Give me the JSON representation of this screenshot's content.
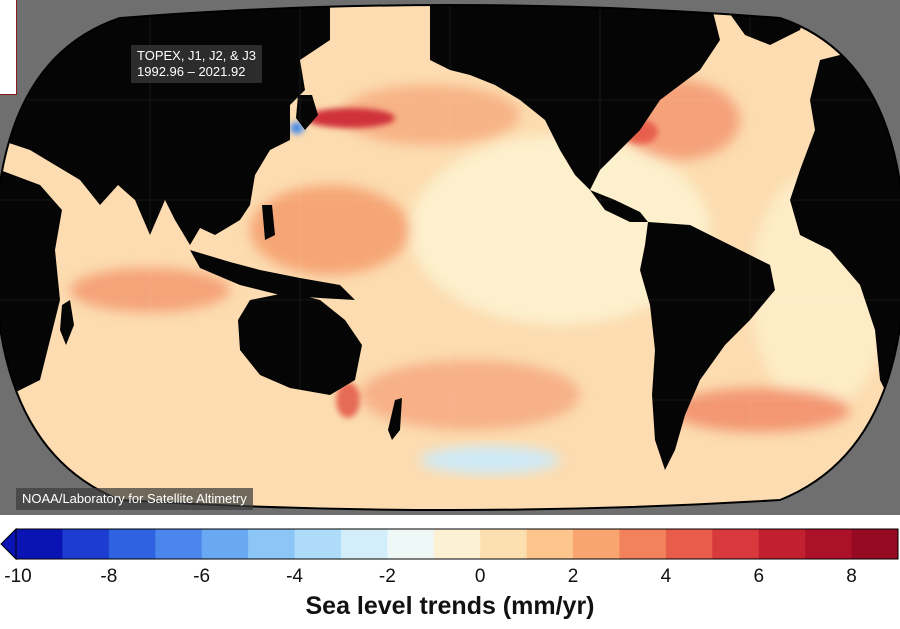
{
  "map": {
    "dataset_label_line1": "TOPEX, J1, J2, & J3",
    "dataset_label_line2": "1992.96 – 2021.92",
    "credit": "NOAA/Laboratory for Satellite Altimetry"
  },
  "colorbar": {
    "title": "Sea level trends (mm/yr)",
    "min": -10,
    "max": 9,
    "tick_labels": [
      "-10",
      "-8",
      "-6",
      "-4",
      "-2",
      "0",
      "2",
      "4",
      "6",
      "8"
    ],
    "tick_values": [
      -10,
      -8,
      -6,
      -4,
      -2,
      0,
      2,
      4,
      6,
      8
    ],
    "colors": [
      "#0a14b4",
      "#1c3dd0",
      "#2f62e0",
      "#4a86ec",
      "#6aa8f2",
      "#8cc6f6",
      "#aedcf8",
      "#d2eefa",
      "#eef8f6",
      "#fdf1d4",
      "#fde0b0",
      "#fbc58d",
      "#f8a56f",
      "#f2825b",
      "#e85c4a",
      "#d8393c",
      "#c21f30",
      "#ab1228",
      "#950a22"
    ]
  }
}
